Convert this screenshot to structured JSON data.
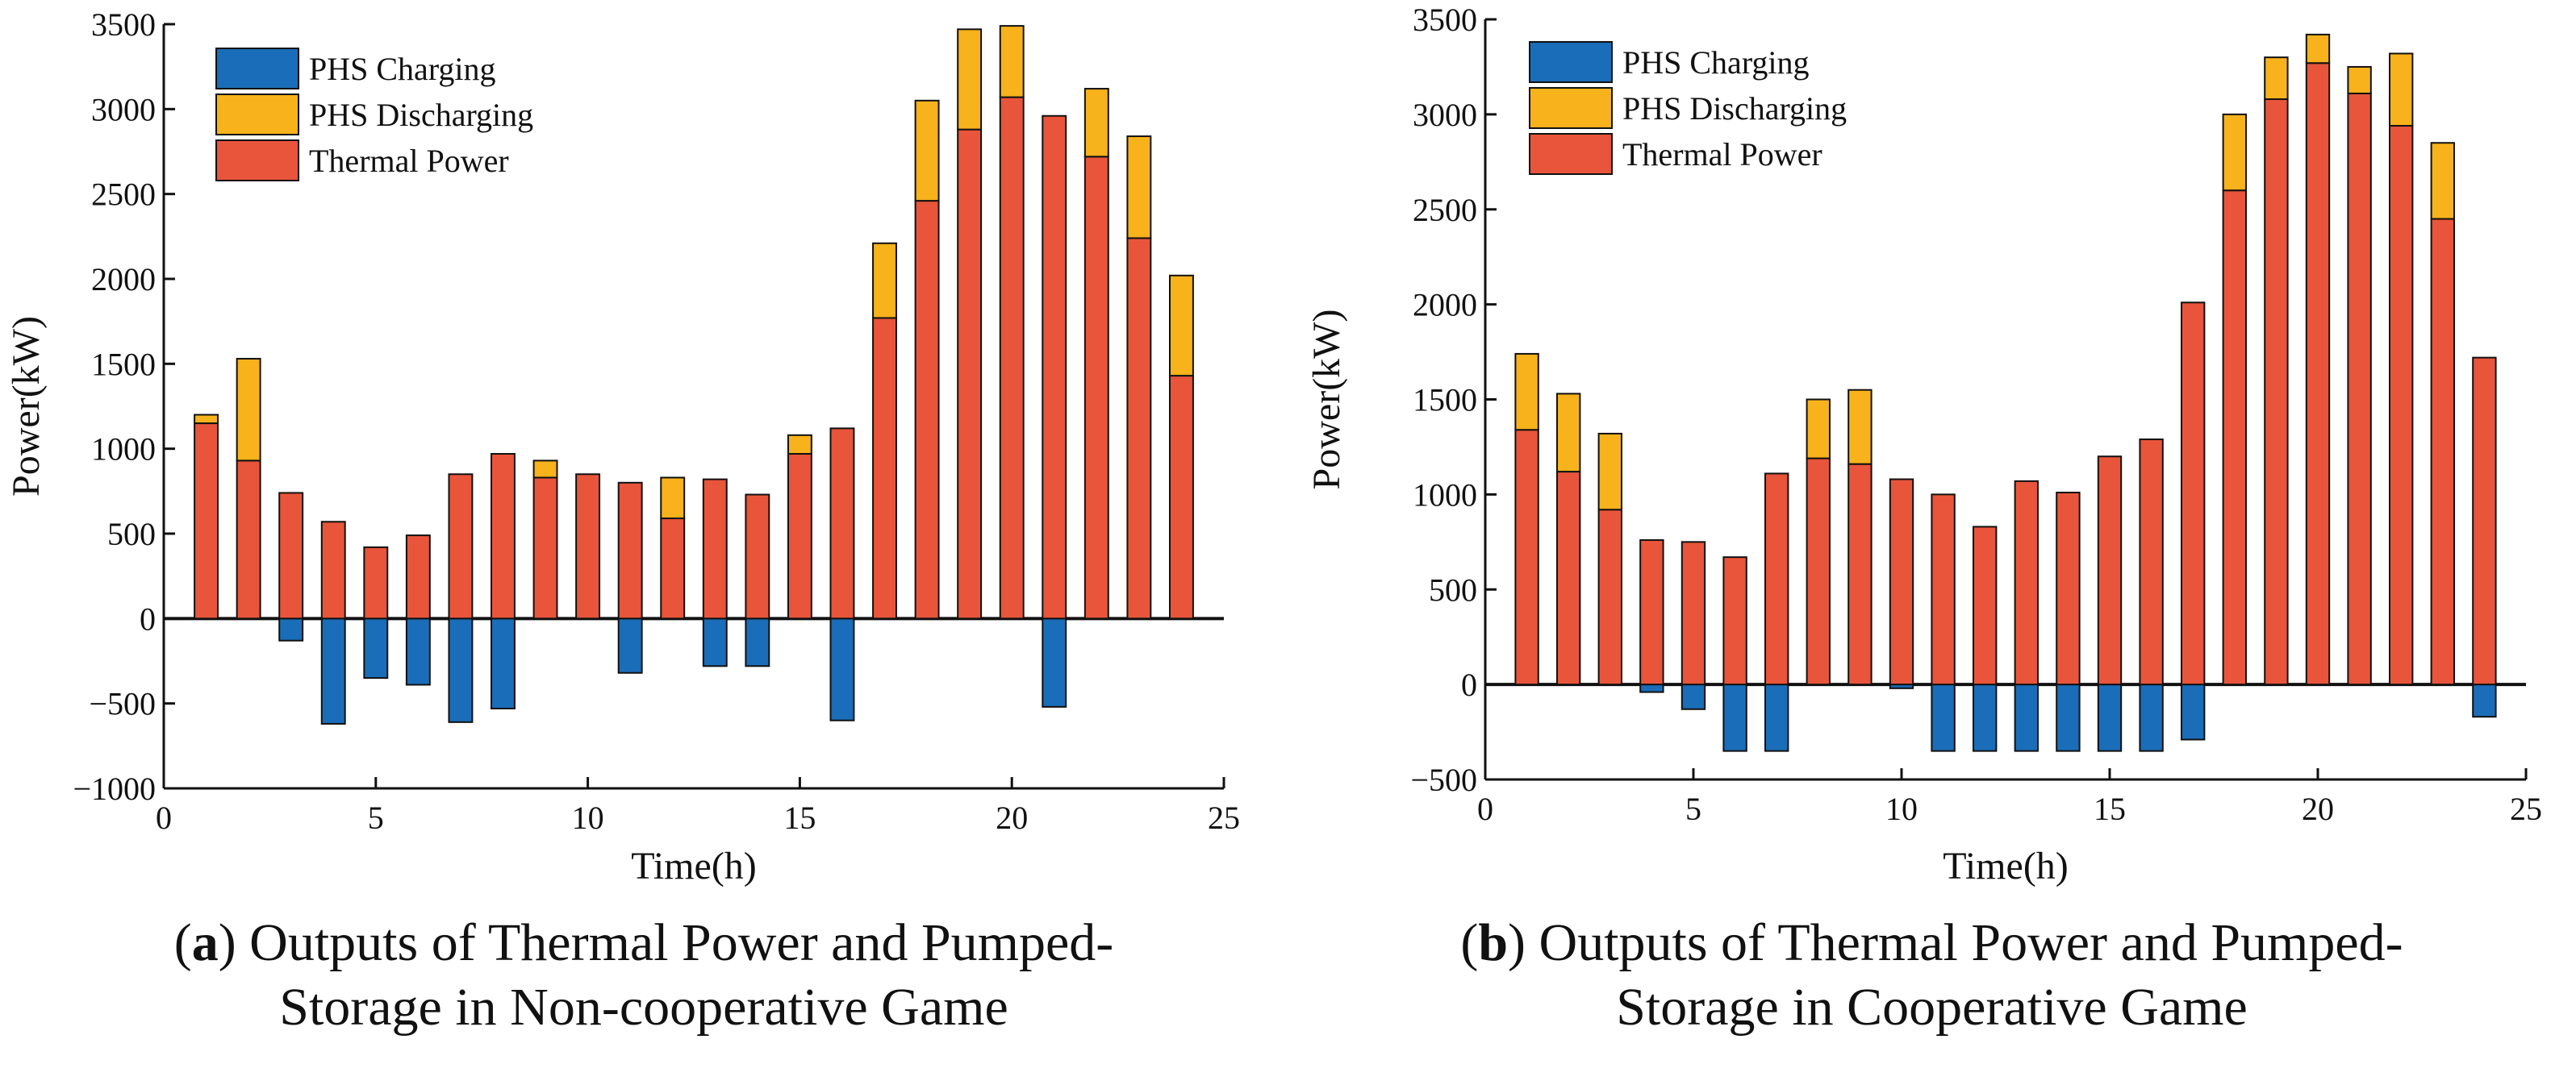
{
  "colors": {
    "charging": "#1a6db8",
    "discharging": "#f7b21c",
    "thermal": "#e8553a",
    "stroke": "#111111"
  },
  "chart_data": [
    {
      "type": "bar",
      "stacked": true,
      "panel_letter": "a",
      "title_line1": "Outputs of Thermal Power and Pumped-",
      "title_line2": "Storage in Non-cooperative Game",
      "xlabel": "Time(h)",
      "ylabel": "Power(kW)",
      "xlim": [
        0,
        25
      ],
      "ylim": [
        -1000,
        3500
      ],
      "xticks": [
        0,
        5,
        10,
        15,
        20,
        25
      ],
      "yticks": [
        -1000,
        -500,
        0,
        500,
        1000,
        1500,
        2000,
        2500,
        3000,
        3500
      ],
      "xtick_labels": [
        "0",
        "5",
        "10",
        "15",
        "20",
        "25"
      ],
      "ytick_labels": [
        "−1000",
        "−500",
        "0",
        "500",
        "1000",
        "1500",
        "2000",
        "2500",
        "3000",
        "3500"
      ],
      "legend": [
        "PHS Charging",
        "PHS Discharging",
        "Thermal Power"
      ],
      "legend_position": "top-left",
      "x": [
        1,
        2,
        3,
        4,
        5,
        6,
        7,
        8,
        9,
        10,
        11,
        12,
        13,
        14,
        15,
        16,
        17,
        18,
        19,
        20,
        21,
        22,
        23,
        24
      ],
      "series": [
        {
          "name": "PHS Charging",
          "values": [
            0,
            0,
            -130,
            -620,
            -350,
            -390,
            -610,
            -530,
            0,
            0,
            -320,
            0,
            -280,
            -280,
            0,
            -600,
            0,
            0,
            0,
            0,
            -520,
            0,
            0,
            0
          ]
        },
        {
          "name": "Thermal Power",
          "values": [
            1150,
            930,
            740,
            570,
            420,
            490,
            850,
            970,
            830,
            850,
            800,
            590,
            820,
            730,
            970,
            1120,
            1770,
            2460,
            2880,
            3070,
            2960,
            2720,
            2240,
            1430
          ]
        },
        {
          "name": "PHS Discharging",
          "values": [
            50,
            600,
            0,
            0,
            0,
            0,
            0,
            0,
            100,
            0,
            0,
            240,
            0,
            0,
            110,
            0,
            440,
            590,
            590,
            420,
            0,
            400,
            600,
            590
          ]
        }
      ]
    },
    {
      "type": "bar",
      "stacked": true,
      "panel_letter": "b",
      "title_line1": "Outputs of Thermal Power and Pumped-",
      "title_line2": "Storage in Cooperative Game",
      "xlabel": "Time(h)",
      "ylabel": "Power(kW)",
      "xlim": [
        0,
        25
      ],
      "ylim": [
        -500,
        3500
      ],
      "xticks": [
        0,
        5,
        10,
        15,
        20,
        25
      ],
      "yticks": [
        -500,
        0,
        500,
        1000,
        1500,
        2000,
        2500,
        3000,
        3500
      ],
      "xtick_labels": [
        "0",
        "5",
        "10",
        "15",
        "20",
        "25"
      ],
      "ytick_labels": [
        "−500",
        "0",
        "500",
        "1000",
        "1500",
        "2000",
        "2500",
        "3000",
        "3500"
      ],
      "legend": [
        "PHS Charging",
        "PHS Discharging",
        "Thermal Power"
      ],
      "legend_position": "top-left",
      "x": [
        1,
        2,
        3,
        4,
        5,
        6,
        7,
        8,
        9,
        10,
        11,
        12,
        13,
        14,
        15,
        16,
        17,
        18,
        19,
        20,
        21,
        22,
        23,
        24
      ],
      "series": [
        {
          "name": "PHS Charging",
          "values": [
            0,
            0,
            0,
            -40,
            -130,
            -350,
            -350,
            0,
            0,
            -20,
            -350,
            -350,
            -350,
            -350,
            -350,
            -350,
            -290,
            0,
            0,
            0,
            0,
            0,
            0,
            -170
          ]
        },
        {
          "name": "Thermal Power",
          "values": [
            1340,
            1120,
            920,
            760,
            750,
            670,
            1110,
            1190,
            1160,
            1080,
            1000,
            830,
            1070,
            1010,
            1200,
            1290,
            2010,
            2600,
            3080,
            3270,
            3110,
            2940,
            2450,
            1720
          ]
        },
        {
          "name": "PHS Discharging",
          "values": [
            400,
            410,
            400,
            0,
            0,
            0,
            0,
            310,
            390,
            0,
            0,
            0,
            0,
            0,
            0,
            0,
            0,
            400,
            220,
            150,
            140,
            380,
            400,
            0
          ]
        }
      ]
    }
  ]
}
